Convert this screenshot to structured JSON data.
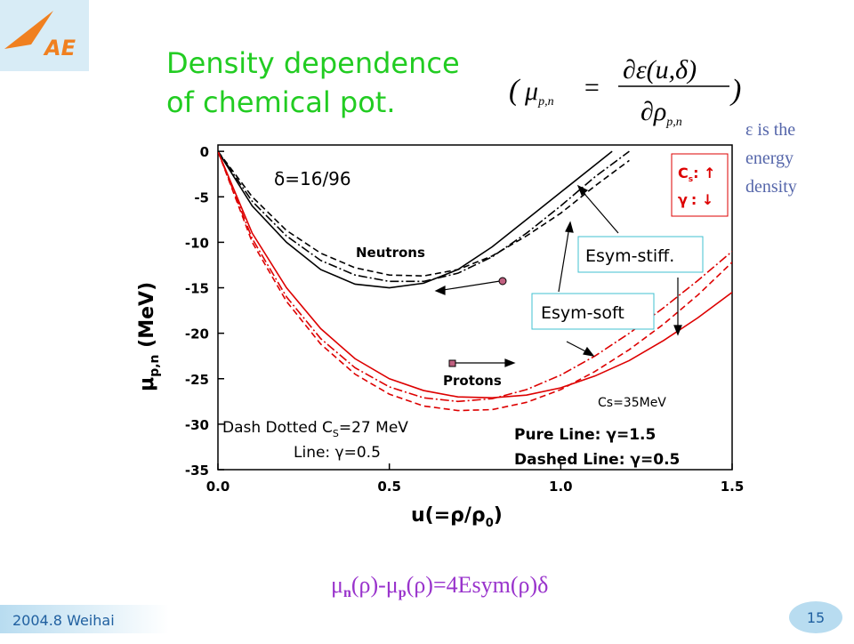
{
  "logo": "AE",
  "title": [
    "Density dependence",
    "of chemical pot."
  ],
  "formula": {
    "open": "(",
    "lhs": "μ",
    "lhs_sub": "p,n",
    "eq": "=",
    "num": "∂ε(u,δ)",
    "den": "∂ρ",
    "den_sub": "p,n",
    "close": ")"
  },
  "note": [
    "ε is the",
    "energy",
    "density"
  ],
  "relation": [
    "μ",
    "n",
    "(ρ)-μ",
    "p",
    "(ρ)=4Esym(ρ)δ"
  ],
  "footer": {
    "place": "2004.8 Weihai",
    "page": "15"
  },
  "chart_data": {
    "type": "line",
    "ylabel": [
      "μ",
      "p,n",
      " (MeV)"
    ],
    "xlabel": [
      "u(=ρ/ρ",
      "0",
      ")"
    ],
    "xlim": [
      0,
      1.5
    ],
    "ylim": [
      -35,
      0.7
    ],
    "xticks": [
      {
        "value": 0,
        "label": "0.0"
      },
      0.5,
      {
        "value": 1,
        "label": "1.0"
      },
      1.5
    ],
    "yticks": [
      0,
      -5,
      -10,
      -15,
      -20,
      -25,
      -30,
      -35
    ],
    "series": [
      {
        "color": "#000000",
        "dash": "solid",
        "x": [
          0,
          0.1,
          0.2,
          0.3,
          0.4,
          0.5,
          0.6,
          0.7,
          0.8,
          0.9,
          1.0,
          1.1,
          1.15
        ],
        "values": [
          0,
          -6,
          -10,
          -13,
          -14.6,
          -15,
          -14.5,
          -13,
          -10.5,
          -7.5,
          -4.5,
          -1.5,
          0
        ]
      },
      {
        "color": "#000000",
        "dash": "dashed",
        "x": [
          0,
          0.1,
          0.2,
          0.3,
          0.4,
          0.5,
          0.6,
          0.7,
          0.8,
          0.9,
          1.0,
          1.1,
          1.2
        ],
        "values": [
          0,
          -5,
          -8.7,
          -11.2,
          -12.8,
          -13.6,
          -13.7,
          -13,
          -11.5,
          -9.3,
          -6.8,
          -3.8,
          -1
        ]
      },
      {
        "color": "#000000",
        "dash": "dashdot",
        "x": [
          0,
          0.1,
          0.2,
          0.3,
          0.4,
          0.5,
          0.6,
          0.7,
          0.8,
          0.9,
          1.0,
          1.1,
          1.2
        ],
        "values": [
          0,
          -5.5,
          -9.3,
          -12,
          -13.6,
          -14.3,
          -14.3,
          -13.4,
          -11.6,
          -9,
          -6,
          -2.8,
          0
        ]
      },
      {
        "color": "#dd0000",
        "dash": "solid",
        "x": [
          0,
          0.1,
          0.2,
          0.3,
          0.4,
          0.5,
          0.6,
          0.7,
          0.8,
          0.9,
          1.0,
          1.1,
          1.2,
          1.3,
          1.4,
          1.5
        ],
        "values": [
          0,
          -9,
          -15,
          -19.5,
          -22.8,
          -25,
          -26.3,
          -27,
          -27.1,
          -26.8,
          -26,
          -24.7,
          -23,
          -20.8,
          -18.3,
          -15.5
        ]
      },
      {
        "color": "#dd0000",
        "dash": "dashed",
        "x": [
          0,
          0.1,
          0.2,
          0.3,
          0.4,
          0.5,
          0.6,
          0.7,
          0.8,
          0.9,
          1.0,
          1.1,
          1.2,
          1.3,
          1.4,
          1.5
        ],
        "values": [
          0,
          -10,
          -16.5,
          -21.2,
          -24.5,
          -26.7,
          -28,
          -28.5,
          -28.4,
          -27.6,
          -26.2,
          -24.2,
          -21.8,
          -19,
          -15.8,
          -12.2
        ]
      },
      {
        "color": "#dd0000",
        "dash": "dashdot",
        "x": [
          0,
          0.1,
          0.2,
          0.3,
          0.4,
          0.5,
          0.6,
          0.7,
          0.8,
          0.9,
          1.0,
          1.1,
          1.2,
          1.3,
          1.4,
          1.5
        ],
        "values": [
          0,
          -9.6,
          -16,
          -20.6,
          -23.8,
          -25.9,
          -27.1,
          -27.5,
          -27.2,
          -26.2,
          -24.6,
          -22.5,
          -20,
          -17.2,
          -14.2,
          -11
        ]
      }
    ],
    "annotations": {
      "delta": "δ=16/96",
      "neutrons": "Neutrons",
      "protons": "Protons",
      "stiff": "Esym-stiff.",
      "soft": "Esym-soft",
      "cs35": "Cs=35MeV",
      "cs_box": [
        [
          "C",
          "s",
          ": ↑"
        ],
        [
          "γ",
          ": ↓"
        ]
      ],
      "dashdot": [
        "Dash Dotted C",
        "S",
        "=27 MeV"
      ],
      "line05": "Line: γ=0.5",
      "pure": "Pure Line: γ=1.5",
      "dashed": "Dashed Line: γ=0.5"
    }
  }
}
